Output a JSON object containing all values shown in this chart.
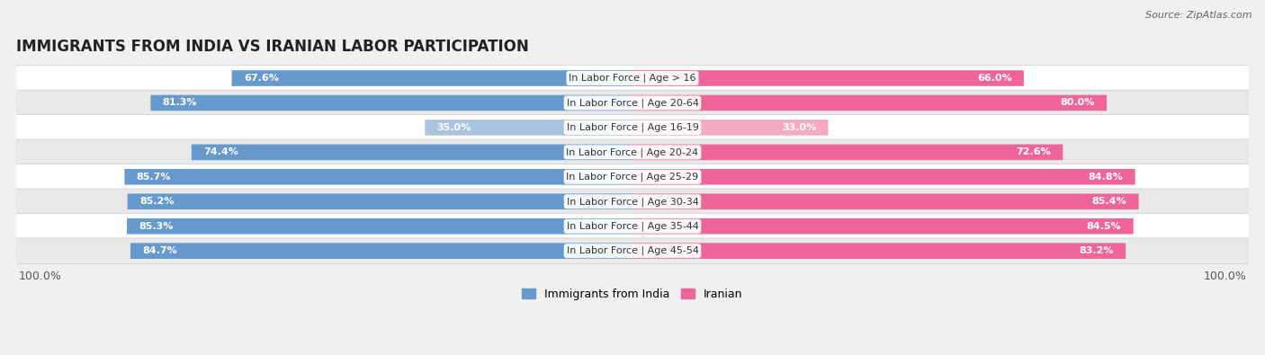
{
  "title": "IMMIGRANTS FROM INDIA VS IRANIAN LABOR PARTICIPATION",
  "source": "Source: ZipAtlas.com",
  "categories": [
    "In Labor Force | Age > 16",
    "In Labor Force | Age 20-64",
    "In Labor Force | Age 16-19",
    "In Labor Force | Age 20-24",
    "In Labor Force | Age 25-29",
    "In Labor Force | Age 30-34",
    "In Labor Force | Age 35-44",
    "In Labor Force | Age 45-54"
  ],
  "india_values": [
    67.6,
    81.3,
    35.0,
    74.4,
    85.7,
    85.2,
    85.3,
    84.7
  ],
  "iranian_values": [
    66.0,
    80.0,
    33.0,
    72.6,
    84.8,
    85.4,
    84.5,
    83.2
  ],
  "india_color_dark": "#6699cc",
  "india_color_light": "#aac4de",
  "iranian_color_dark": "#ee6699",
  "iranian_color_light": "#f4aac4",
  "bar_height": 0.62,
  "max_value": 100.0,
  "background_color": "#f0f0f0",
  "row_bg_even": "#ffffff",
  "row_bg_odd": "#e8e8e8",
  "title_fontsize": 12,
  "label_fontsize": 8,
  "value_fontsize": 8,
  "tick_fontsize": 9,
  "legend_fontsize": 9,
  "low_threshold": 50
}
